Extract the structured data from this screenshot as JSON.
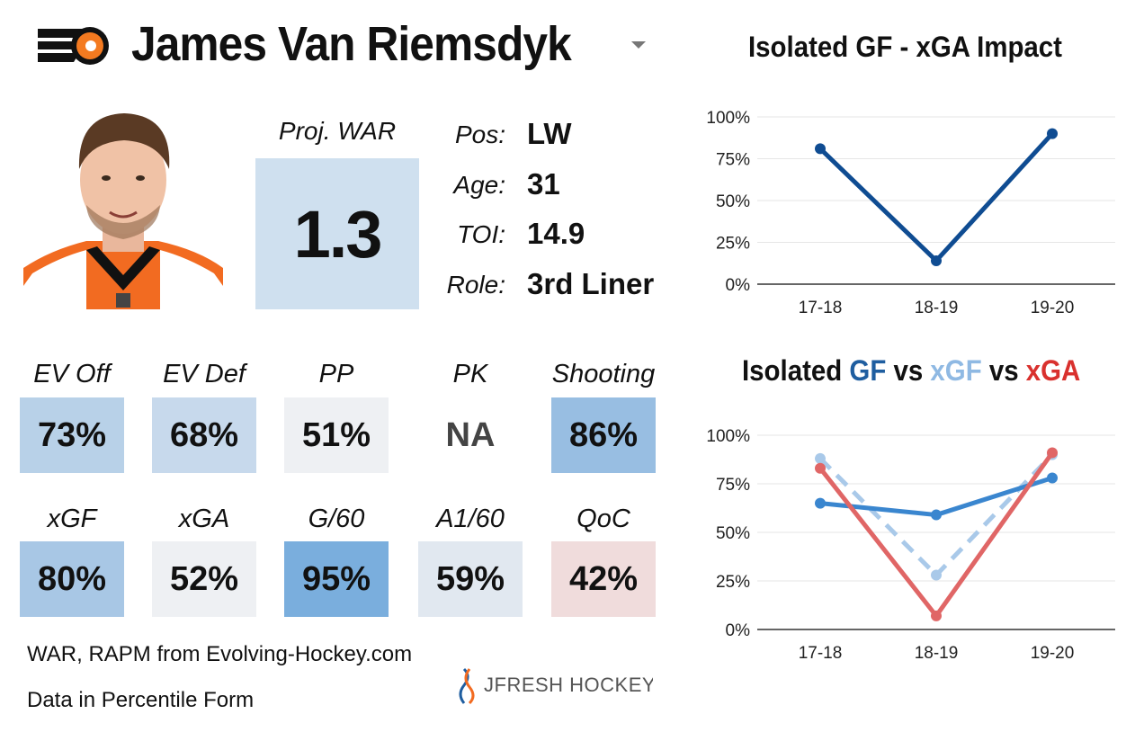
{
  "header": {
    "player_name": "James Van Riemsdyk",
    "team_logo_icon": "flyers-logo-icon",
    "dropdown_icon": "chevron-down-icon"
  },
  "war": {
    "label": "Proj. WAR",
    "value": "1.3",
    "color": "#cfe0ef"
  },
  "info": [
    {
      "label": "Pos:",
      "value": "LW"
    },
    {
      "label": "Age:",
      "value": "31"
    },
    {
      "label": "TOI:",
      "value": "14.9"
    },
    {
      "label": "Role:",
      "value": "3rd Liner"
    }
  ],
  "stats_row1": [
    {
      "label": "EV Off",
      "value": "73%",
      "color": "#b8d1e8"
    },
    {
      "label": "EV Def",
      "value": "68%",
      "color": "#c7d9ec"
    },
    {
      "label": "PP",
      "value": "51%",
      "color": "#eef0f3"
    },
    {
      "label": "PK",
      "value": "NA",
      "color": "#ffffff"
    },
    {
      "label": "Shooting",
      "value": "86%",
      "color": "#98bee2"
    }
  ],
  "stats_row2": [
    {
      "label": "xGF",
      "value": "80%",
      "color": "#a8c7e5"
    },
    {
      "label": "xGA",
      "value": "52%",
      "color": "#eef0f3"
    },
    {
      "label": "G/60",
      "value": "95%",
      "color": "#7aaedd"
    },
    {
      "label": "A1/60",
      "value": "59%",
      "color": "#e1e8f0"
    },
    {
      "label": "QoC",
      "value": "42%",
      "color": "#f0dcdc"
    }
  ],
  "footer": {
    "source": "WAR, RAPM from  Evolving-Hockey.com",
    "note": "Data in Percentile Form",
    "brand": "JFRESH HOCKEY"
  },
  "chart_titles": {
    "top": "Isolated GF - xGA Impact",
    "bottom_parts": [
      {
        "text": "Isolated ",
        "color": "#111111"
      },
      {
        "text": "GF",
        "color": "#1f5ea0"
      },
      {
        "text": " vs ",
        "color": "#111111"
      },
      {
        "text": "xGF",
        "color": "#8fb9e3"
      },
      {
        "text": " vs ",
        "color": "#111111"
      },
      {
        "text": "xGA",
        "color": "#d9312e"
      }
    ]
  },
  "chart_data": [
    {
      "type": "line",
      "title": "Isolated GF - xGA Impact",
      "categories": [
        "17-18",
        "18-19",
        "19-20"
      ],
      "yticks": [
        "0%",
        "25%",
        "50%",
        "75%",
        "100%"
      ],
      "ylim": [
        0,
        100
      ],
      "grid": true,
      "series": [
        {
          "values": [
            81,
            14,
            90
          ],
          "color": "#0f4c92",
          "dashed": false
        }
      ]
    },
    {
      "type": "line",
      "title": "Isolated GF vs xGF vs xGA",
      "categories": [
        "17-18",
        "18-19",
        "19-20"
      ],
      "yticks": [
        "0%",
        "25%",
        "50%",
        "75%",
        "100%"
      ],
      "ylim": [
        0,
        100
      ],
      "grid": true,
      "series": [
        {
          "name": "xGF",
          "values": [
            88,
            28,
            90
          ],
          "color": "#a9c9e9",
          "dashed": true
        },
        {
          "name": "GF",
          "values": [
            65,
            59,
            78
          ],
          "color": "#3a86cf",
          "dashed": false
        },
        {
          "name": "xGA",
          "values": [
            83,
            7,
            91
          ],
          "color": "#e06666",
          "dashed": false
        }
      ]
    }
  ]
}
